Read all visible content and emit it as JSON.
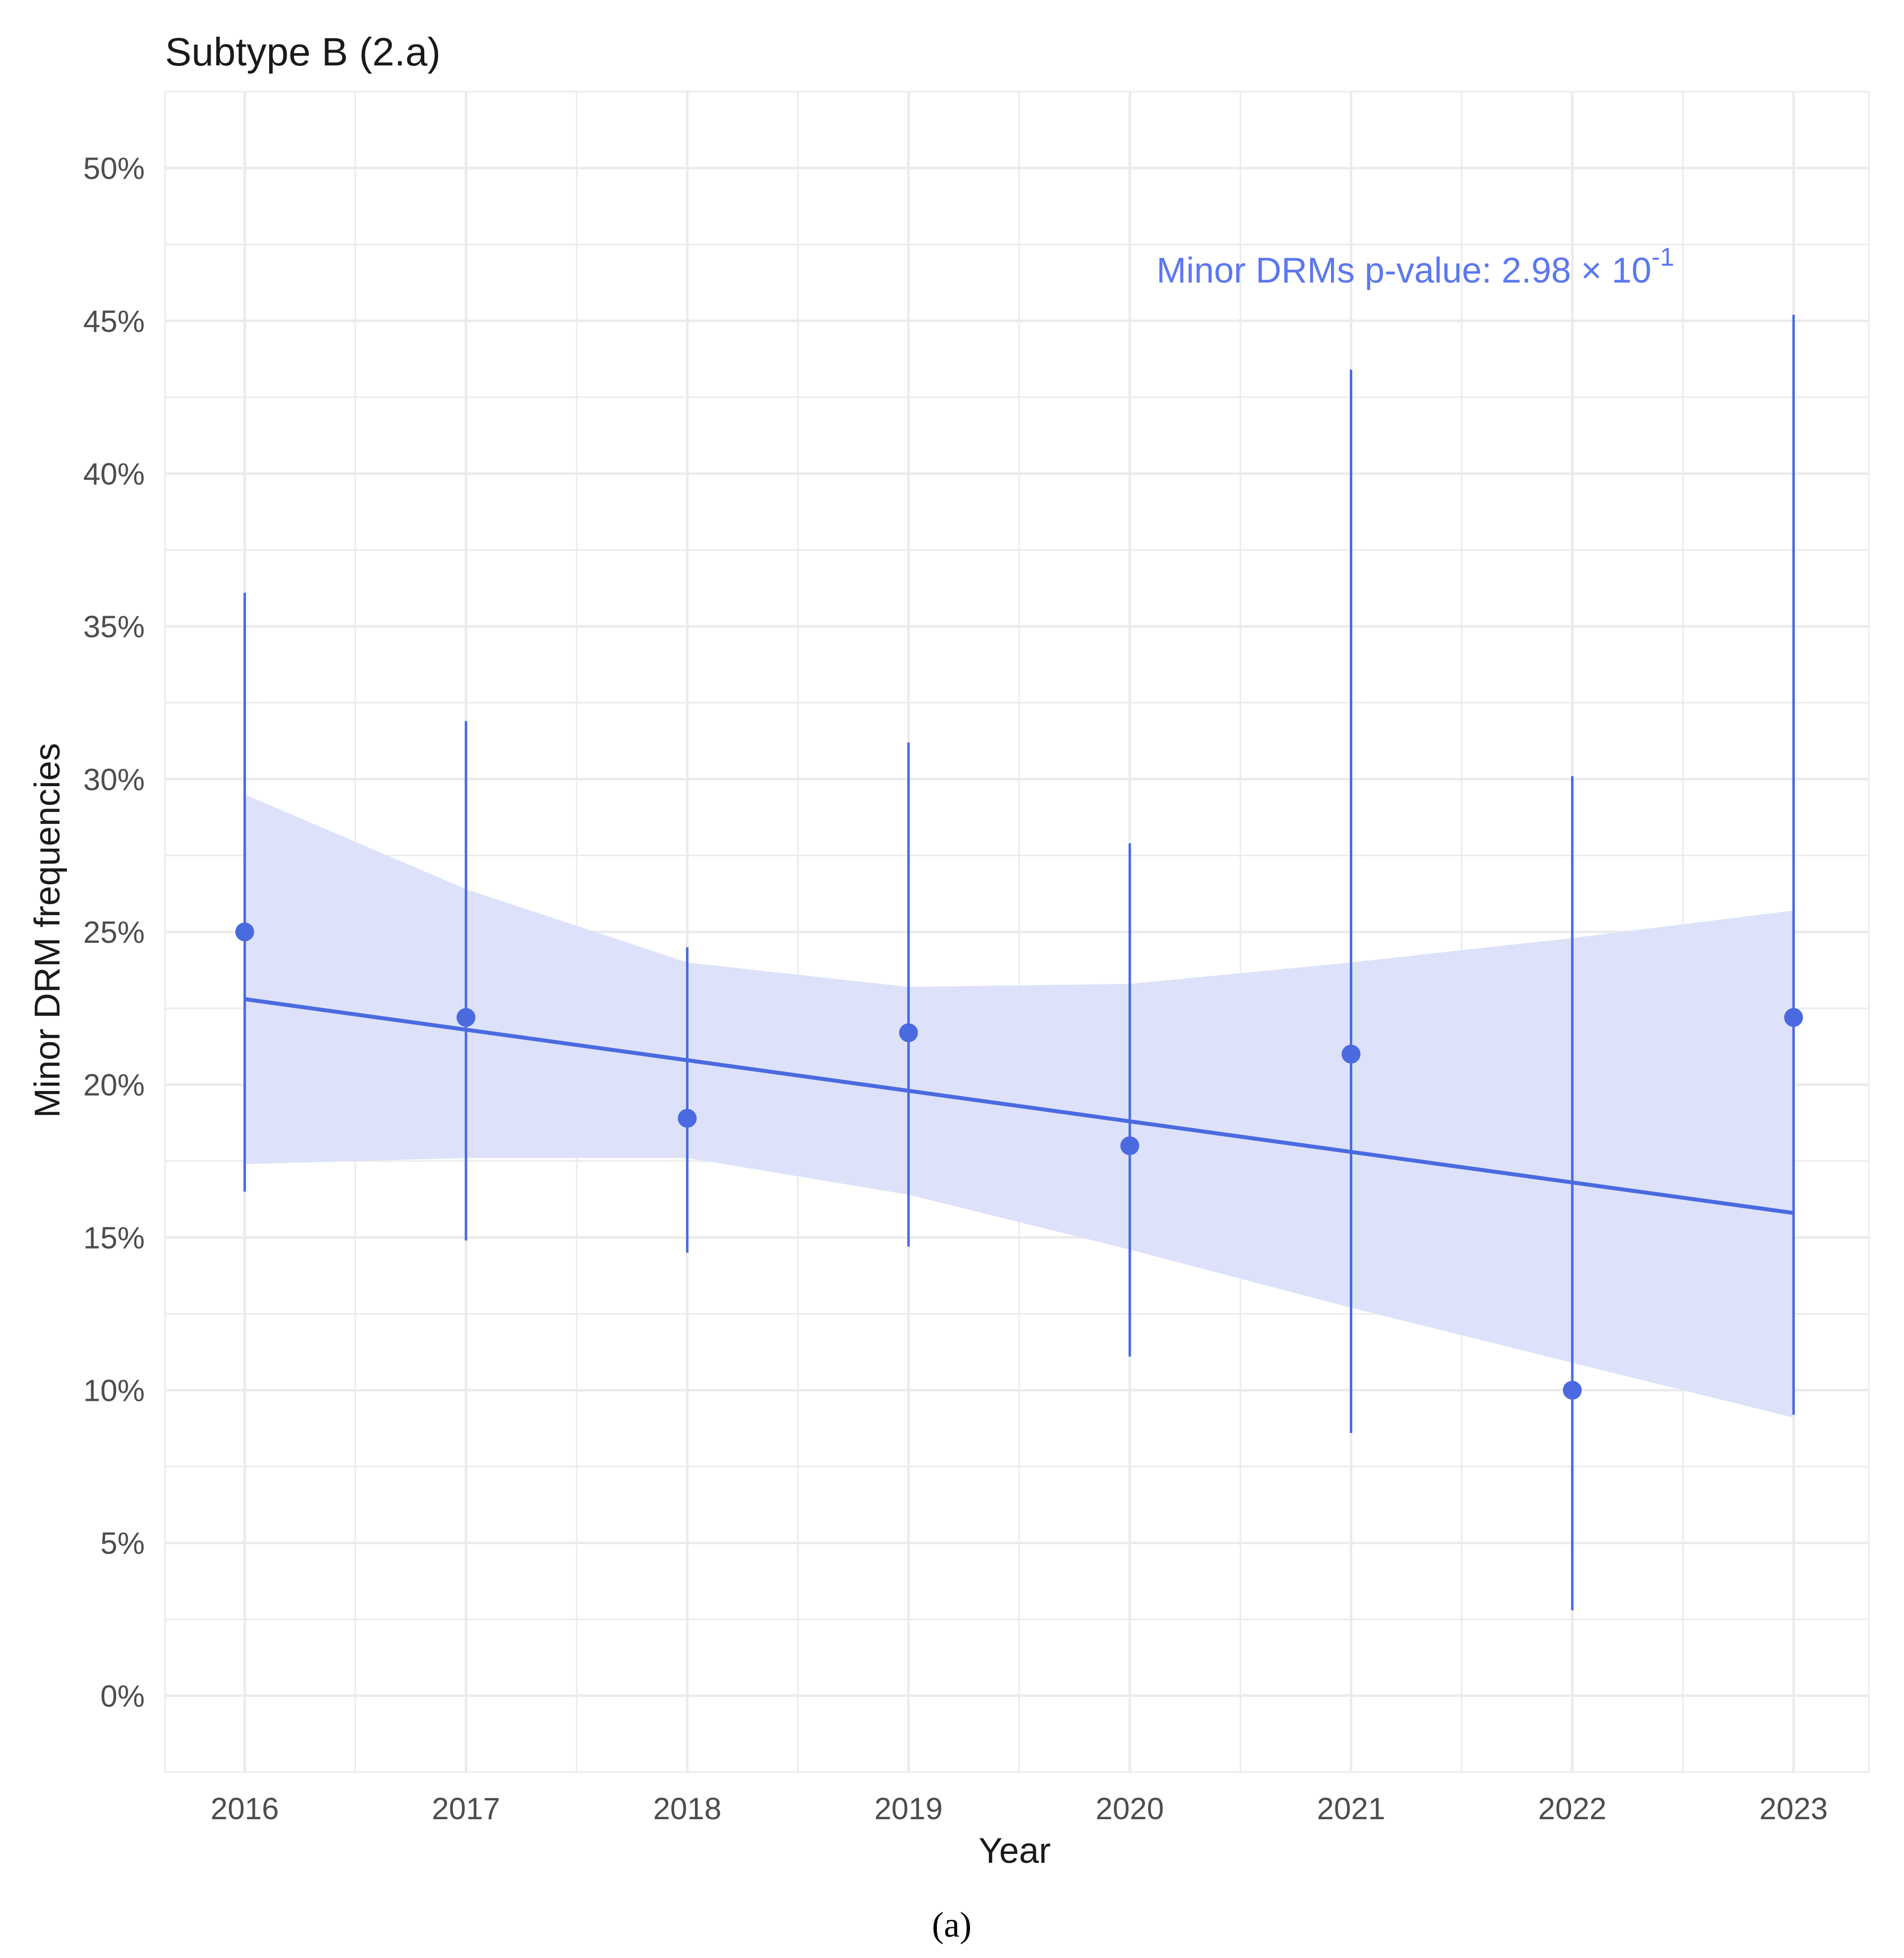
{
  "chart_data": {
    "type": "line",
    "title": "Subtype B (2.a)",
    "xlabel": "Year",
    "ylabel": "Minor DRM frequencies",
    "x": [
      2016,
      2017,
      2018,
      2019,
      2020,
      2021,
      2022,
      2023
    ],
    "x_tick_labels": [
      "2016",
      "2017",
      "2018",
      "2019",
      "2020",
      "2021",
      "2022",
      "2023"
    ],
    "xlim": [
      2015.64,
      2023.34
    ],
    "ylim": [
      -2.5,
      52.5
    ],
    "y_ticks": [
      0,
      5,
      10,
      15,
      20,
      25,
      30,
      35,
      40,
      45,
      50
    ],
    "y_tick_labels": [
      "0%",
      "5%",
      "10%",
      "15%",
      "20%",
      "25%",
      "30%",
      "35%",
      "40%",
      "45%",
      "50%"
    ],
    "grid": true,
    "series": [
      {
        "name": "Minor DRM frequency",
        "values": [
          25.0,
          22.2,
          18.9,
          21.7,
          18.0,
          21.0,
          10.0,
          22.2
        ],
        "ci_low": [
          16.5,
          14.9,
          14.5,
          14.7,
          11.1,
          8.6,
          2.8,
          9.2
        ],
        "ci_high": [
          36.1,
          31.9,
          24.5,
          31.2,
          27.9,
          43.4,
          30.1,
          45.2
        ]
      }
    ],
    "trend": {
      "name": "Linear fit",
      "x": [
        2016,
        2023
      ],
      "y": [
        22.8,
        15.8
      ],
      "band_x": [
        2016,
        2017,
        2018,
        2019,
        2020,
        2021,
        2022,
        2023
      ],
      "band_low": [
        17.4,
        17.6,
        17.6,
        16.4,
        14.6,
        12.7,
        10.9,
        9.1
      ],
      "band_high": [
        29.5,
        26.4,
        24.0,
        23.2,
        23.3,
        24.0,
        24.8,
        25.7
      ]
    },
    "annotation": {
      "text": "Minor DRMs p-value: 2.98 × 10",
      "exponent": "-1"
    },
    "caption": "(a)",
    "colors": {
      "series": "#4a6ae0",
      "band": "#dde2fa",
      "grid": "#ebebeb",
      "annotation": "#5b78ef"
    }
  }
}
